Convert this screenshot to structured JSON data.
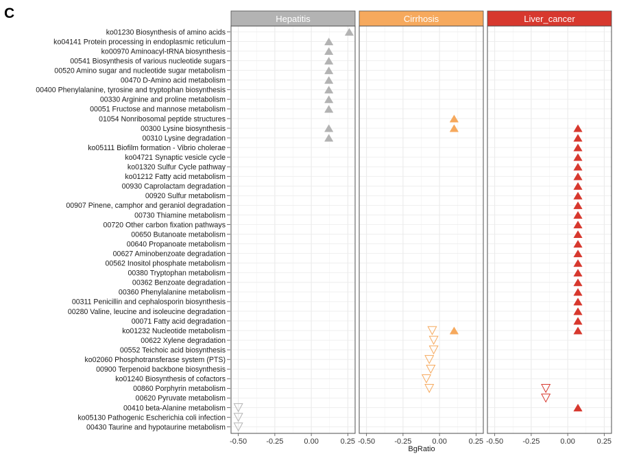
{
  "panel_letter": "C",
  "chart_data": {
    "type": "scatter",
    "xlabel": "BgRatio",
    "xlim": [
      -0.55,
      0.3
    ],
    "xticks": [
      -0.5,
      -0.25,
      0.0,
      0.25
    ],
    "xtick_labels": [
      "-0.50",
      "-0.25",
      "0.00",
      "0.25"
    ],
    "grid": true,
    "facets": [
      {
        "name": "Hepatitis",
        "color": "#b3b3b3"
      },
      {
        "name": "Cirrhosis",
        "color": "#f6a95d"
      },
      {
        "name": "Liver_cancer",
        "color": "#d7382e"
      }
    ],
    "categories": [
      "ko01230 Biosynthesis of amino acids",
      "ko04141 Protein processing in endoplasmic reticulum",
      "ko00970 Aminoacyl-tRNA biosynthesis",
      "00541 Biosynthesis of various nucleotide sugars",
      "00520 Amino sugar and nucleotide sugar metabolism",
      "00470 D-Amino acid metabolism",
      "00400 Phenylalanine, tyrosine and tryptophan biosynthesis",
      "00330 Arginine and proline metabolism",
      "00051 Fructose and mannose metabolism",
      "01054 Nonribosomal peptide structures",
      "00300 Lysine biosynthesis",
      "00310 Lysine degradation",
      "ko05111 Biofilm formation - Vibrio cholerae",
      "ko04721 Synaptic vesicle cycle",
      "ko01320 Sulfur Cycle pathway",
      "ko01212 Fatty acid metabolism",
      "00930 Caprolactam degradation",
      "00920 Sulfur metabolism",
      "00907 Pinene, camphor and geraniol degradation",
      "00730 Thiamine metabolism",
      "00720 Other carbon fixation pathways",
      "00650 Butanoate metabolism",
      "00640 Propanoate metabolism",
      "00627 Aminobenzoate degradation",
      "00562 Inositol phosphate metabolism",
      "00380 Tryptophan metabolism",
      "00362 Benzoate degradation",
      "00360 Phenylalanine metabolism",
      "00311 Penicillin and cephalosporin biosynthesis",
      "00280 Valine, leucine and isoleucine degradation",
      "00071 Fatty acid degradation",
      "ko01232 Nucleotide metabolism",
      "00622 Xylene degradation",
      "00552 Teichoic acid biosynthesis",
      "ko02060 Phosphotransferase system (PTS)",
      "00900 Terpenoid backbone biosynthesis",
      "ko01240 Biosynthesis of cofactors",
      "00860 Porphyrin metabolism",
      "00620 Pyruvate metabolism",
      "00410 beta-Alanine metabolism",
      "ko05130 Pathogenic Escherichia coli infection",
      "00430 Taurine and hypotaurine metabolism"
    ],
    "points": [
      {
        "facet": 0,
        "row": 0,
        "x": 0.26,
        "dir": "up"
      },
      {
        "facet": 0,
        "row": 1,
        "x": 0.12,
        "dir": "up"
      },
      {
        "facet": 0,
        "row": 2,
        "x": 0.12,
        "dir": "up"
      },
      {
        "facet": 0,
        "row": 3,
        "x": 0.12,
        "dir": "up"
      },
      {
        "facet": 0,
        "row": 4,
        "x": 0.12,
        "dir": "up"
      },
      {
        "facet": 0,
        "row": 5,
        "x": 0.12,
        "dir": "up"
      },
      {
        "facet": 0,
        "row": 6,
        "x": 0.12,
        "dir": "up"
      },
      {
        "facet": 0,
        "row": 7,
        "x": 0.12,
        "dir": "up"
      },
      {
        "facet": 0,
        "row": 8,
        "x": 0.12,
        "dir": "up"
      },
      {
        "facet": 0,
        "row": 10,
        "x": 0.12,
        "dir": "up"
      },
      {
        "facet": 0,
        "row": 11,
        "x": 0.12,
        "dir": "up"
      },
      {
        "facet": 0,
        "row": 39,
        "x": -0.5,
        "dir": "down"
      },
      {
        "facet": 0,
        "row": 40,
        "x": -0.5,
        "dir": "down"
      },
      {
        "facet": 0,
        "row": 41,
        "x": -0.5,
        "dir": "down"
      },
      {
        "facet": 1,
        "row": 9,
        "x": 0.1,
        "dir": "up"
      },
      {
        "facet": 1,
        "row": 10,
        "x": 0.1,
        "dir": "up"
      },
      {
        "facet": 1,
        "row": 31,
        "x": 0.1,
        "dir": "up"
      },
      {
        "facet": 1,
        "row": 31,
        "x": -0.05,
        "dir": "down"
      },
      {
        "facet": 1,
        "row": 32,
        "x": -0.04,
        "dir": "down"
      },
      {
        "facet": 1,
        "row": 33,
        "x": -0.04,
        "dir": "down"
      },
      {
        "facet": 1,
        "row": 34,
        "x": -0.07,
        "dir": "down"
      },
      {
        "facet": 1,
        "row": 35,
        "x": -0.06,
        "dir": "down"
      },
      {
        "facet": 1,
        "row": 36,
        "x": -0.09,
        "dir": "down"
      },
      {
        "facet": 1,
        "row": 37,
        "x": -0.07,
        "dir": "down"
      },
      {
        "facet": 2,
        "row": 10,
        "x": 0.07,
        "dir": "up"
      },
      {
        "facet": 2,
        "row": 11,
        "x": 0.07,
        "dir": "up"
      },
      {
        "facet": 2,
        "row": 12,
        "x": 0.07,
        "dir": "up"
      },
      {
        "facet": 2,
        "row": 13,
        "x": 0.07,
        "dir": "up"
      },
      {
        "facet": 2,
        "row": 14,
        "x": 0.07,
        "dir": "up"
      },
      {
        "facet": 2,
        "row": 15,
        "x": 0.07,
        "dir": "up"
      },
      {
        "facet": 2,
        "row": 16,
        "x": 0.07,
        "dir": "up"
      },
      {
        "facet": 2,
        "row": 17,
        "x": 0.07,
        "dir": "up"
      },
      {
        "facet": 2,
        "row": 18,
        "x": 0.07,
        "dir": "up"
      },
      {
        "facet": 2,
        "row": 19,
        "x": 0.07,
        "dir": "up"
      },
      {
        "facet": 2,
        "row": 20,
        "x": 0.07,
        "dir": "up"
      },
      {
        "facet": 2,
        "row": 21,
        "x": 0.07,
        "dir": "up"
      },
      {
        "facet": 2,
        "row": 22,
        "x": 0.07,
        "dir": "up"
      },
      {
        "facet": 2,
        "row": 23,
        "x": 0.07,
        "dir": "up"
      },
      {
        "facet": 2,
        "row": 24,
        "x": 0.07,
        "dir": "up"
      },
      {
        "facet": 2,
        "row": 25,
        "x": 0.07,
        "dir": "up"
      },
      {
        "facet": 2,
        "row": 26,
        "x": 0.07,
        "dir": "up"
      },
      {
        "facet": 2,
        "row": 27,
        "x": 0.07,
        "dir": "up"
      },
      {
        "facet": 2,
        "row": 28,
        "x": 0.07,
        "dir": "up"
      },
      {
        "facet": 2,
        "row": 29,
        "x": 0.07,
        "dir": "up"
      },
      {
        "facet": 2,
        "row": 30,
        "x": 0.07,
        "dir": "up"
      },
      {
        "facet": 2,
        "row": 31,
        "x": 0.07,
        "dir": "up"
      },
      {
        "facet": 2,
        "row": 37,
        "x": -0.15,
        "dir": "down"
      },
      {
        "facet": 2,
        "row": 38,
        "x": -0.15,
        "dir": "down"
      },
      {
        "facet": 2,
        "row": 39,
        "x": 0.07,
        "dir": "up"
      }
    ]
  }
}
